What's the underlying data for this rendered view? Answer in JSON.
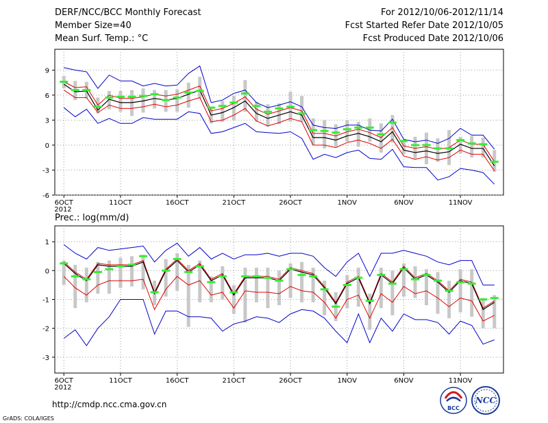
{
  "header": {
    "title": "DERF/NCC/BCC Monthly Forecast",
    "member_size": "Member Size=40",
    "period": "For 2012/10/06-2012/11/14",
    "started": "Fcst Started Refer Date 2012/10/05",
    "produced": "Fcst Produced Date 2012/10/06"
  },
  "footer": {
    "url": "http://cmdp.ncc.cma.gov.cn",
    "grads": "GrADS: COLA/IGES",
    "logo_bcc": "BCC",
    "logo_ncc": "NCC"
  },
  "colors": {
    "mean": "#000000",
    "sigma": "#e00000",
    "extreme": "#0000cc",
    "box": "#c8c8c8",
    "median": "#33ee33",
    "grid": "#999999"
  },
  "chart_data": [
    {
      "type": "box",
      "title": "Mean Surf. Temp.: °C",
      "x_tick_labels": [
        "6OCT",
        "11OCT",
        "16OCT",
        "21OCT",
        "26OCT",
        "1NOV",
        "6NOV",
        "11NOV"
      ],
      "x_tick_days": [
        0,
        5,
        10,
        15,
        20,
        25,
        30,
        35
      ],
      "year_label": "2012",
      "y_ticks": [
        "-6",
        "-3",
        "0",
        "3",
        "6",
        "9"
      ],
      "y_tick_values": [
        -6,
        -3,
        0,
        3,
        6,
        9
      ],
      "ylim": [
        -6,
        11.5
      ],
      "xlim": [
        -0.8,
        38.8
      ],
      "series": {
        "mean": [
          7.3,
          6.4,
          6.5,
          4.2,
          5.5,
          5.1,
          5.1,
          5.3,
          5.6,
          5.4,
          5.6,
          6.1,
          6.6,
          3.6,
          3.9,
          4.5,
          5.3,
          3.8,
          3.2,
          3.6,
          4.0,
          3.6,
          0.9,
          0.9,
          0.6,
          1.1,
          1.4,
          1.0,
          0.4,
          1.6,
          -0.6,
          -0.9,
          -0.7,
          -1.0,
          -0.8,
          0.1,
          -0.4,
          -0.4,
          -2.5
        ],
        "upper_sigma": [
          7.6,
          6.9,
          7.0,
          4.8,
          6.0,
          5.6,
          5.6,
          5.8,
          6.1,
          5.9,
          6.1,
          6.6,
          7.1,
          4.1,
          4.4,
          5.0,
          5.8,
          4.3,
          3.7,
          4.1,
          4.5,
          4.1,
          1.4,
          1.4,
          1.1,
          1.6,
          1.9,
          1.5,
          0.9,
          2.1,
          -0.1,
          -0.4,
          -0.2,
          -0.5,
          -0.3,
          0.6,
          0.1,
          0.1,
          -2.0
        ],
        "lower_sigma": [
          6.6,
          5.7,
          5.7,
          3.9,
          4.8,
          4.4,
          4.4,
          4.6,
          4.9,
          4.6,
          4.8,
          5.3,
          5.7,
          2.8,
          3.0,
          3.6,
          4.4,
          2.9,
          2.3,
          2.7,
          3.2,
          2.8,
          0.0,
          0.0,
          -0.3,
          0.3,
          0.6,
          0.2,
          -0.4,
          0.7,
          -1.3,
          -1.7,
          -1.4,
          -1.8,
          -1.5,
          -0.6,
          -1.1,
          -1.1,
          -3.1
        ],
        "max": [
          9.3,
          9.0,
          8.8,
          6.8,
          8.4,
          7.7,
          7.7,
          7.1,
          7.4,
          7.1,
          7.2,
          8.6,
          9.5,
          5.1,
          5.4,
          6.2,
          6.6,
          5.1,
          4.5,
          4.8,
          5.2,
          4.6,
          2.4,
          2.1,
          2.0,
          2.4,
          2.4,
          1.8,
          1.7,
          3.1,
          0.7,
          0.4,
          0.6,
          0.2,
          0.8,
          2.0,
          1.2,
          1.2,
          -0.5
        ],
        "min": [
          4.5,
          3.4,
          4.3,
          2.6,
          3.2,
          2.6,
          2.6,
          3.3,
          3.1,
          3.1,
          3.1,
          4.0,
          3.8,
          1.4,
          1.6,
          2.1,
          2.6,
          1.6,
          1.5,
          1.4,
          1.6,
          0.8,
          -1.7,
          -1.1,
          -1.5,
          -0.9,
          -0.6,
          -1.6,
          -1.7,
          -0.5,
          -2.6,
          -2.7,
          -2.7,
          -4.2,
          -3.8,
          -2.8,
          -3.0,
          -3.3,
          -4.7
        ],
        "box_hi": [
          8.3,
          7.7,
          7.6,
          5.7,
          6.5,
          6.5,
          6.6,
          6.8,
          6.6,
          6.6,
          6.7,
          7.5,
          8.2,
          4.6,
          5.3,
          5.9,
          7.8,
          5.2,
          4.9,
          5.0,
          6.4,
          5.9,
          3.2,
          3.0,
          2.5,
          3.0,
          2.8,
          3.2,
          2.6,
          3.6,
          0.6,
          1.0,
          1.5,
          0.8,
          1.8,
          1.0,
          1.1,
          0.9,
          -0.6
        ],
        "box_lo": [
          6.8,
          5.4,
          5.6,
          3.8,
          4.3,
          4.0,
          3.5,
          3.9,
          4.4,
          4.0,
          4.0,
          4.5,
          5.6,
          2.6,
          2.8,
          3.0,
          4.0,
          2.8,
          2.2,
          2.5,
          2.8,
          2.8,
          0.0,
          -0.4,
          -0.2,
          0.4,
          -0.2,
          0.4,
          -0.9,
          0.3,
          -1.1,
          -1.6,
          -2.3,
          -2.0,
          -2.4,
          -1.0,
          -1.5,
          -1.5,
          -3.2
        ],
        "median": [
          7.6,
          6.6,
          6.6,
          4.6,
          5.7,
          5.8,
          5.8,
          5.9,
          6.1,
          5.4,
          5.7,
          6.3,
          6.5,
          4.5,
          4.7,
          5.1,
          6.2,
          4.7,
          4.0,
          4.4,
          4.6,
          3.8,
          1.8,
          1.7,
          1.5,
          1.9,
          2.1,
          2.1,
          1.3,
          2.7,
          0.5,
          0.0,
          0.0,
          -0.4,
          -0.4,
          0.6,
          0.2,
          0.1,
          -2.0
        ]
      }
    },
    {
      "type": "box",
      "title": "Prec.: log(mm/d)",
      "x_tick_labels": [
        "6OCT",
        "11OCT",
        "16OCT",
        "21OCT",
        "26OCT",
        "1NOV",
        "6NOV",
        "11NOV"
      ],
      "x_tick_days": [
        0,
        5,
        10,
        15,
        20,
        25,
        30,
        35
      ],
      "year_label": "2012",
      "y_ticks": [
        "-3",
        "-2",
        "-1",
        "0",
        "1"
      ],
      "y_tick_values": [
        -3,
        -2,
        -1,
        0,
        1
      ],
      "ylim": [
        -3.55,
        1.55
      ],
      "xlim": [
        -0.8,
        38.8
      ],
      "series": {
        "mean": [
          0.25,
          -0.1,
          -0.35,
          0.2,
          0.15,
          0.15,
          0.15,
          0.3,
          -0.8,
          0.0,
          0.35,
          -0.05,
          0.2,
          -0.35,
          -0.15,
          -0.85,
          -0.25,
          -0.25,
          -0.25,
          -0.35,
          0.05,
          -0.05,
          -0.15,
          -0.6,
          -1.15,
          -0.45,
          -0.25,
          -1.15,
          -0.15,
          -0.45,
          0.1,
          -0.3,
          -0.15,
          -0.4,
          -0.75,
          -0.35,
          -0.45,
          -1.35,
          -1.1
        ],
        "upper_sigma": [
          0.3,
          -0.05,
          -0.3,
          0.25,
          0.2,
          0.2,
          0.2,
          0.35,
          -0.75,
          0.05,
          0.4,
          0.0,
          0.25,
          -0.3,
          -0.1,
          -0.8,
          -0.2,
          -0.2,
          -0.2,
          -0.3,
          0.1,
          0.0,
          -0.1,
          -0.55,
          -1.1,
          -0.4,
          -0.2,
          -1.1,
          -0.1,
          -0.4,
          0.15,
          -0.25,
          -0.1,
          -0.35,
          -0.7,
          -0.3,
          -0.4,
          -1.3,
          -1.05
        ],
        "lower_sigma": [
          -0.2,
          -0.6,
          -0.85,
          -0.5,
          -0.35,
          -0.35,
          -0.35,
          -0.3,
          -1.35,
          -0.65,
          -0.2,
          -0.5,
          -0.35,
          -0.85,
          -0.75,
          -1.3,
          -0.7,
          -0.75,
          -0.75,
          -0.8,
          -0.55,
          -0.7,
          -0.75,
          -1.1,
          -1.65,
          -1.0,
          -0.85,
          -1.65,
          -0.8,
          -1.1,
          -0.55,
          -0.8,
          -0.7,
          -0.95,
          -1.25,
          -0.95,
          -1.05,
          -1.75,
          -1.55
        ],
        "max": [
          0.9,
          0.6,
          0.4,
          0.8,
          0.7,
          0.75,
          0.8,
          0.85,
          0.3,
          0.7,
          0.95,
          0.5,
          0.8,
          0.4,
          0.6,
          0.4,
          0.55,
          0.55,
          0.6,
          0.5,
          0.6,
          0.6,
          0.5,
          0.1,
          -0.2,
          0.3,
          0.6,
          -0.2,
          0.6,
          0.6,
          0.7,
          0.6,
          0.5,
          0.3,
          0.2,
          0.35,
          0.35,
          -0.5,
          -0.5
        ],
        "min": [
          -2.35,
          -2.05,
          -2.6,
          -2.0,
          -1.6,
          -1.0,
          -1.0,
          -1.0,
          -2.2,
          -1.4,
          -1.4,
          -1.6,
          -1.6,
          -1.65,
          -2.1,
          -1.85,
          -1.75,
          -1.6,
          -1.65,
          -1.8,
          -1.5,
          -1.35,
          -1.4,
          -1.65,
          -2.1,
          -2.5,
          -1.5,
          -2.5,
          -1.65,
          -2.1,
          -1.5,
          -1.7,
          -1.7,
          -1.8,
          -2.2,
          -1.75,
          -1.9,
          -2.55,
          -2.4
        ],
        "box_hi": [
          0.35,
          0.2,
          0.1,
          0.3,
          0.35,
          0.45,
          0.5,
          0.55,
          -0.35,
          0.4,
          0.6,
          0.2,
          0.35,
          -0.2,
          0.15,
          -0.5,
          0.1,
          0.1,
          0.1,
          0.0,
          0.25,
          0.3,
          0.1,
          -0.35,
          -0.75,
          -0.15,
          0.1,
          -0.8,
          0.1,
          0.0,
          0.25,
          0.15,
          0.05,
          -0.05,
          -0.35,
          0.05,
          0.05,
          -0.95,
          -0.85
        ],
        "box_lo": [
          -0.5,
          -1.3,
          -1.1,
          -0.8,
          -0.8,
          -0.6,
          -0.55,
          -0.65,
          -1.2,
          -0.9,
          -0.7,
          -1.95,
          -1.1,
          -1.1,
          -1.0,
          -1.5,
          -1.8,
          -1.1,
          -1.3,
          -1.2,
          -0.95,
          -1.1,
          -1.1,
          -1.55,
          -1.75,
          -1.3,
          -1.25,
          -2.05,
          -1.3,
          -1.55,
          -0.9,
          -0.95,
          -1.2,
          -1.5,
          -1.65,
          -1.45,
          -1.6,
          -2.0,
          -2.0
        ],
        "median": [
          0.25,
          -0.2,
          -0.3,
          -0.05,
          0.05,
          0.15,
          0.2,
          0.5,
          -0.75,
          0.0,
          0.4,
          -0.05,
          0.15,
          -0.4,
          -0.2,
          -0.75,
          -0.2,
          -0.2,
          -0.25,
          -0.35,
          0.05,
          -0.15,
          -0.2,
          -0.65,
          -1.25,
          -0.5,
          -0.25,
          -1.05,
          -0.15,
          -0.45,
          0.05,
          -0.3,
          -0.15,
          -0.35,
          -0.7,
          -0.4,
          -0.45,
          -1.0,
          -0.95
        ]
      }
    }
  ]
}
